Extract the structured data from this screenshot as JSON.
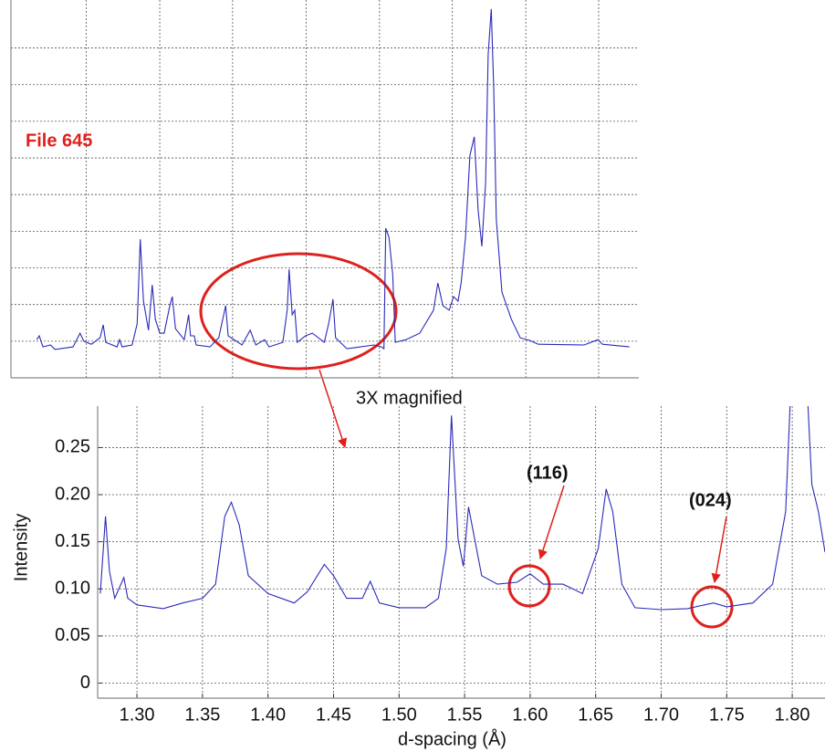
{
  "chart_data": [
    {
      "type": "line",
      "annotations": [
        "File 645"
      ],
      "xlim": [
        0,
        100
      ],
      "ylim": [
        0,
        100
      ],
      "xticks": [
        12,
        23.7,
        35.3,
        47,
        58.7,
        70.3,
        82,
        93.6
      ],
      "yticks": [
        9.7,
        19.4,
        29.1,
        38.8,
        48.5,
        58.2,
        67.9,
        77.6,
        87.3
      ],
      "grid": true,
      "series": [
        {
          "color": "#2a2ab8",
          "x": [
            4.1,
            4.5,
            5.1,
            6.3,
            7.0,
            9.9,
            11.0,
            11.6,
            12.8,
            14.2,
            14.7,
            15.1,
            16.9,
            17.3,
            17.7,
            19.3,
            20.1,
            20.6,
            21.1,
            21.9,
            22.5,
            23.0,
            23.7,
            24.4,
            25.3,
            25.7,
            26.2,
            27.6,
            28.3,
            28.6,
            29.2,
            29.5,
            31.7,
            33.1,
            34.2,
            34.6,
            36.8,
            38.1,
            39.0,
            40.4,
            41.1,
            43.3,
            44.0,
            44.3,
            44.8,
            45.2,
            45.6,
            46.9,
            48.0,
            49.9,
            50.6,
            51.3,
            51.7,
            53.5,
            55.7,
            57.8,
            59.0,
            59.4,
            59.7,
            60.2,
            60.8,
            61.2,
            62.9,
            65.1,
            67.3,
            68.0,
            68.8,
            69.8,
            70.5,
            71.2,
            71.7,
            72.4,
            73.1,
            73.8,
            74.4,
            75.0,
            75.6,
            76.0,
            76.5,
            76.9,
            77.3,
            78.2,
            79.7,
            81.1,
            82.6,
            84.0,
            91.3,
            93.5,
            94.2,
            98.5
          ],
          "values": [
            10.1,
            11.1,
            8.2,
            8.7,
            7.5,
            8.2,
            11.8,
            9.7,
            8.9,
            10.6,
            14.0,
            9.4,
            8.2,
            10.1,
            8.2,
            8.7,
            14.3,
            36.7,
            20.3,
            12.6,
            24.6,
            15.5,
            11.8,
            11.8,
            19.1,
            21.5,
            13.0,
            10.1,
            16.7,
            11.1,
            11.1,
            8.7,
            8.2,
            10.6,
            19.1,
            11.1,
            8.7,
            12.6,
            8.7,
            10.1,
            8.2,
            9.4,
            17.9,
            28.7,
            16.7,
            17.9,
            9.4,
            11.1,
            11.8,
            9.4,
            14.3,
            20.8,
            10.6,
            7.7,
            8.2,
            8.7,
            8.2,
            7.7,
            39.6,
            37.2,
            27.5,
            9.4,
            10.1,
            11.8,
            17.9,
            25.1,
            19.1,
            17.9,
            21.5,
            20.3,
            25.1,
            37.2,
            58.9,
            63.8,
            44.4,
            34.8,
            51.7,
            85.5,
            97.6,
            75.8,
            42.0,
            22.7,
            15.5,
            10.6,
            9.9,
            8.9,
            8.7,
            10.1,
            8.9,
            8.2
          ]
        }
      ]
    },
    {
      "type": "line",
      "annotations": [
        "3X magnified",
        "(116)",
        "(024)"
      ],
      "x_label": "d-spacing (Å)",
      "y_label": "Intensity",
      "xlim": [
        1.27,
        1.825
      ],
      "ylim": [
        -0.016,
        0.294
      ],
      "xticks": [
        {
          "value": 1.3,
          "label": "1.30"
        },
        1.35,
        {
          "value": 1.4,
          "label": "1.40"
        },
        1.45,
        {
          "value": 1.5,
          "label": "1.50"
        },
        1.55,
        {
          "value": 1.6,
          "label": "1.60"
        },
        1.65,
        {
          "value": 1.7,
          "label": "1.70"
        },
        1.75,
        {
          "value": 1.8,
          "label": "1.80"
        }
      ],
      "yticks": [
        0,
        0.05,
        {
          "value": 0.1,
          "label": "0.10"
        },
        0.15,
        {
          "value": 0.2,
          "label": "0.20"
        },
        0.25
      ],
      "grid": true,
      "series": [
        {
          "color": "#2a2ab8",
          "x": [
            1.272,
            1.276,
            1.279,
            1.283,
            1.29,
            1.293,
            1.3,
            1.32,
            1.335,
            1.35,
            1.36,
            1.367,
            1.372,
            1.378,
            1.385,
            1.4,
            1.42,
            1.43,
            1.443,
            1.45,
            1.46,
            1.472,
            1.478,
            1.485,
            1.5,
            1.52,
            1.53,
            1.536,
            1.54,
            1.545,
            1.549,
            1.553,
            1.557,
            1.563,
            1.575,
            1.59,
            1.6,
            1.61,
            1.625,
            1.64,
            1.652,
            1.658,
            1.663,
            1.67,
            1.68,
            1.7,
            1.72,
            1.74,
            1.75,
            1.77,
            1.785,
            1.795,
            1.8,
            1.81,
            1.815,
            1.82,
            1.825
          ],
          "values": [
            0.095,
            0.177,
            0.119,
            0.09,
            0.112,
            0.09,
            0.083,
            0.079,
            0.085,
            0.09,
            0.105,
            0.177,
            0.192,
            0.168,
            0.114,
            0.095,
            0.085,
            0.097,
            0.126,
            0.114,
            0.09,
            0.09,
            0.108,
            0.085,
            0.08,
            0.08,
            0.09,
            0.143,
            0.284,
            0.153,
            0.124,
            0.187,
            0.158,
            0.114,
            0.105,
            0.107,
            0.116,
            0.105,
            0.105,
            0.095,
            0.143,
            0.206,
            0.182,
            0.105,
            0.08,
            0.078,
            0.079,
            0.085,
            0.081,
            0.085,
            0.105,
            0.182,
            0.35,
            0.35,
            0.211,
            0.182,
            0.139
          ]
        }
      ]
    }
  ]
}
